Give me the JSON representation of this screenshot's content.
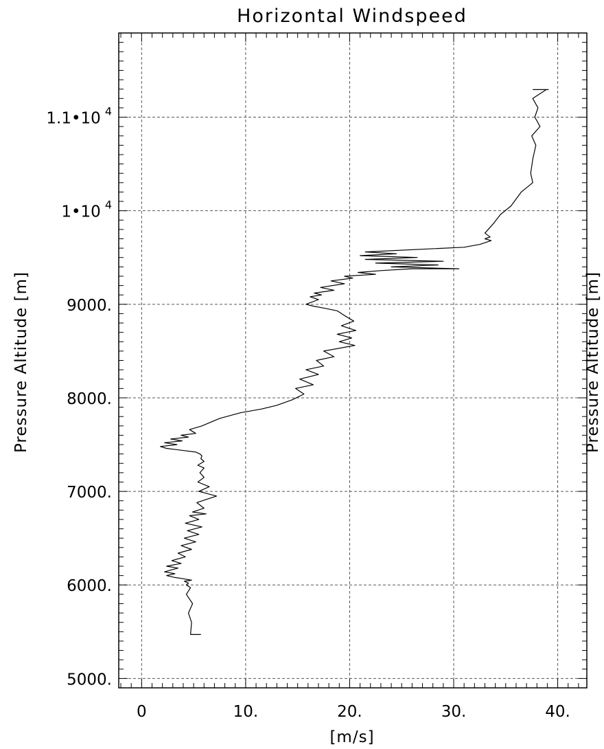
{
  "chart_data": {
    "type": "line",
    "title": "Horizontal Windspeed",
    "xlabel": "[m/s]",
    "ylabel": "Pressure Altitude [m]",
    "ylabel_right": "Pressure Altitude [m]",
    "xlim": [
      -2.2,
      42.8
    ],
    "ylim": [
      4900,
      11900
    ],
    "grid": true,
    "x_ticks": [
      {
        "value": 0,
        "label": "0"
      },
      {
        "value": 10,
        "label": "10."
      },
      {
        "value": 20,
        "label": "20."
      },
      {
        "value": 30,
        "label": "30."
      },
      {
        "value": 40,
        "label": "40."
      }
    ],
    "y_ticks": [
      {
        "value": 5000,
        "label": "5000."
      },
      {
        "value": 6000,
        "label": "6000."
      },
      {
        "value": 7000,
        "label": "7000."
      },
      {
        "value": 8000,
        "label": "8000."
      },
      {
        "value": 9000,
        "label": "9000."
      },
      {
        "value": 10000,
        "label": "1•10",
        "exp": "4"
      },
      {
        "value": 11000,
        "label": "1.1•10",
        "exp": "4"
      }
    ],
    "series": [
      {
        "x": [
          5.7,
          4.7,
          4.8,
          4.5,
          4.9,
          4.3,
          4.7,
          4.3,
          4.5,
          4.1,
          4.8,
          3.8,
          3.2,
          2.4,
          3.2,
          2.2,
          3.5,
          2.4,
          3.8,
          2.9,
          4.2,
          3.5,
          4.8,
          3.8,
          5.2,
          4.1,
          5.5,
          4.4,
          5.8,
          4.2,
          5.5,
          4.6,
          6.2,
          4.9,
          6.0,
          5.3,
          7.2,
          5.5,
          6.5,
          5.4,
          6.0,
          5.6,
          6.0,
          5.4,
          6.0,
          5.7,
          5.8,
          5.6,
          5.2,
          3.8,
          2.4,
          1.8,
          3.4,
          2.2,
          3.9,
          2.8,
          4.5,
          3.8,
          5.2,
          4.6,
          5.8,
          7.5,
          9.5,
          11.5,
          13.0,
          14.5,
          15.6,
          14.8,
          16.5,
          15.2,
          17.0,
          15.8,
          17.5,
          16.8,
          18.5,
          17.5,
          20.5,
          19.0,
          20.2,
          18.8,
          20.6,
          19.2,
          20.4,
          19.5,
          18.8,
          17.5,
          16.5,
          15.8,
          17.0,
          16.2,
          17.3,
          16.6,
          18.5,
          17.2,
          19.5,
          18.2,
          20.3,
          19.5,
          22.5,
          20.8,
          23.0,
          26.0,
          30.5,
          24.0,
          28.5,
          22.5,
          29.0,
          21.5,
          26.5,
          21.0,
          24.5,
          21.5,
          31.0,
          32.5,
          33.6,
          33.0,
          33.5,
          33.0,
          33.8,
          34.5,
          35.5,
          36.5,
          37.6,
          37.4,
          37.6,
          37.9,
          37.5,
          38.3,
          37.8,
          38.1,
          37.6,
          38.9,
          39.1,
          38.0,
          37.6
        ],
        "y": [
          5470,
          5470,
          5600,
          5700,
          5800,
          5900,
          5970,
          6000,
          6020,
          6040,
          6050,
          6070,
          6080,
          6100,
          6120,
          6140,
          6180,
          6200,
          6230,
          6260,
          6300,
          6340,
          6380,
          6420,
          6460,
          6500,
          6540,
          6580,
          6620,
          6660,
          6700,
          6740,
          6760,
          6780,
          6820,
          6880,
          6950,
          7000,
          7050,
          7100,
          7150,
          7200,
          7250,
          7280,
          7320,
          7350,
          7380,
          7400,
          7420,
          7440,
          7460,
          7480,
          7500,
          7520,
          7540,
          7560,
          7580,
          7600,
          7620,
          7660,
          7700,
          7780,
          7840,
          7880,
          7920,
          7980,
          8040,
          8100,
          8140,
          8200,
          8250,
          8300,
          8340,
          8400,
          8440,
          8500,
          8560,
          8600,
          8640,
          8680,
          8720,
          8770,
          8820,
          8880,
          8930,
          8960,
          8980,
          9000,
          9050,
          9080,
          9100,
          9120,
          9150,
          9180,
          9220,
          9250,
          9280,
          9300,
          9320,
          9340,
          9360,
          9380,
          9380,
          9400,
          9420,
          9440,
          9460,
          9480,
          9500,
          9520,
          9540,
          9560,
          9610,
          9640,
          9680,
          9700,
          9720,
          9760,
          9860,
          9960,
          10050,
          10200,
          10300,
          10400,
          10550,
          10700,
          10800,
          10900,
          11000,
          11100,
          11200,
          11295,
          11295,
          11295,
          11295
        ]
      }
    ]
  }
}
